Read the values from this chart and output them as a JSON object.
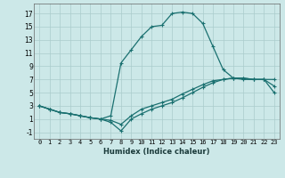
{
  "bg_color": "#cce8e8",
  "grid_color": "#aacccc",
  "line_color": "#1a7070",
  "xlabel": "Humidex (Indice chaleur)",
  "xlim": [
    -0.5,
    23.5
  ],
  "ylim": [
    -2.0,
    18.5
  ],
  "yticks": [
    -1,
    1,
    3,
    5,
    7,
    9,
    11,
    13,
    15,
    17
  ],
  "xticks": [
    0,
    1,
    2,
    3,
    4,
    5,
    6,
    7,
    8,
    9,
    10,
    11,
    12,
    13,
    14,
    15,
    16,
    17,
    18,
    19,
    20,
    21,
    22,
    23
  ],
  "line1_x": [
    0,
    1,
    2,
    3,
    4,
    5,
    6,
    7,
    8,
    9,
    10,
    11,
    12,
    13,
    14,
    15,
    16,
    17,
    18,
    19,
    20,
    21,
    22,
    23
  ],
  "line1_y": [
    3,
    2.5,
    2,
    1.8,
    1.5,
    1.2,
    1.0,
    1.5,
    9.5,
    11.5,
    13.5,
    15.0,
    15.2,
    17.0,
    17.2,
    17.0,
    15.5,
    12.0,
    8.5,
    7.2,
    7.0,
    7.0,
    7.0,
    6.0
  ],
  "line2_x": [
    0,
    1,
    2,
    3,
    4,
    5,
    6,
    7,
    8,
    9,
    10,
    11,
    12,
    13,
    14,
    15,
    16,
    17,
    18,
    19,
    20,
    21,
    22,
    23
  ],
  "line2_y": [
    3,
    2.5,
    2.0,
    1.8,
    1.5,
    1.2,
    1.0,
    0.8,
    0.2,
    1.5,
    2.5,
    3.0,
    3.5,
    4.0,
    4.8,
    5.5,
    6.2,
    6.8,
    7.0,
    7.2,
    7.2,
    7.0,
    7.0,
    7.0
  ],
  "line3_x": [
    0,
    1,
    2,
    3,
    4,
    5,
    6,
    7,
    8,
    9,
    10,
    11,
    12,
    13,
    14,
    15,
    16,
    17,
    18,
    19,
    20,
    21,
    22,
    23
  ],
  "line3_y": [
    3,
    2.5,
    2.0,
    1.8,
    1.5,
    1.2,
    1.0,
    0.5,
    -0.8,
    1.0,
    1.8,
    2.5,
    3.0,
    3.5,
    4.2,
    5.0,
    5.8,
    6.5,
    7.0,
    7.2,
    7.2,
    7.0,
    7.0,
    5.0
  ],
  "marker": "+",
  "markersize": 3,
  "linewidth": 0.9,
  "xlabel_fontsize": 6,
  "tick_fontsize": 5,
  "ytick_fontsize": 5.5
}
